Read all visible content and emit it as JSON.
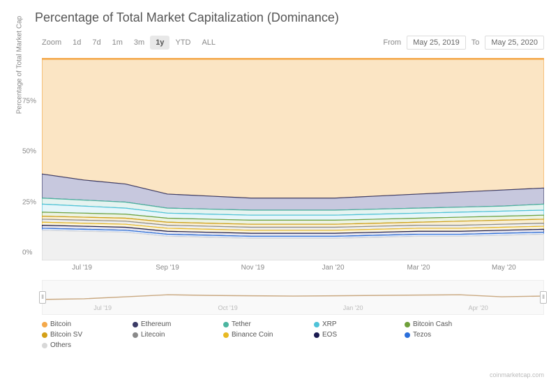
{
  "title": "Percentage of Total Market Capitalization (Dominance)",
  "zoom": {
    "label": "Zoom",
    "buttons": [
      "1d",
      "7d",
      "1m",
      "3m",
      "1y",
      "YTD",
      "ALL"
    ],
    "active": "1y"
  },
  "dates": {
    "from_label": "From",
    "from": "May 25, 2019",
    "to_label": "To",
    "to": "May 25, 2020"
  },
  "chart": {
    "type": "stacked-area",
    "y_label": "Percentage of Total Market Cap",
    "ylim": [
      0,
      100
    ],
    "y_ticks": [
      0,
      25,
      50,
      75
    ],
    "x_ticks": [
      "Jul '19",
      "Sep '19",
      "Nov '19",
      "Jan '20",
      "Mar '20",
      "May '20"
    ],
    "x_positions": [
      8,
      25,
      42,
      58,
      75,
      92
    ],
    "grid_color": "#e8e8e8",
    "top_border_color": "#f4a94b",
    "background_color": "#ffffff",
    "series": [
      {
        "name": "Others",
        "color": "#d8d8d8",
        "fill": "#f0f0f0",
        "cum": [
          15,
          14.5,
          14,
          12,
          11.5,
          11,
          11,
          11,
          11.5,
          12,
          12,
          12.5,
          13
        ]
      },
      {
        "name": "Tezos",
        "color": "#2a6fdb",
        "fill": "#e8effc",
        "cum": [
          16,
          15.5,
          15,
          13,
          12.5,
          12,
          12,
          12,
          12.5,
          13,
          13,
          13.5,
          14
        ]
      },
      {
        "name": "EOS",
        "color": "#1a1a50",
        "fill": "#e6e6f0",
        "cum": [
          17.5,
          17,
          16.5,
          14.5,
          14,
          13.5,
          13.5,
          13.5,
          14,
          14.5,
          14.5,
          15,
          15.5
        ]
      },
      {
        "name": "Binance Coin",
        "color": "#e8b923",
        "fill": "#fbf4dc",
        "cum": [
          19,
          18.5,
          18,
          16,
          15.5,
          15,
          15,
          15,
          15.5,
          16,
          16,
          16.5,
          17
        ]
      },
      {
        "name": "Litecoin",
        "color": "#8a8a8a",
        "fill": "#efefef",
        "cum": [
          20.5,
          20,
          19.5,
          17.5,
          17,
          16.5,
          16.5,
          16.5,
          17,
          17.5,
          17.5,
          18,
          18.5
        ]
      },
      {
        "name": "Bitcoin SV",
        "color": "#d4a017",
        "fill": "#f8efd6",
        "cum": [
          22,
          21.5,
          21,
          19,
          18.5,
          18,
          18,
          18,
          18.5,
          19,
          19.5,
          20,
          20.5
        ]
      },
      {
        "name": "Bitcoin Cash",
        "color": "#6fa03a",
        "fill": "#ecf3e3",
        "cum": [
          24,
          23.5,
          23,
          21,
          20.5,
          20,
          20,
          20,
          20.5,
          21,
          21.5,
          22,
          22.5
        ]
      },
      {
        "name": "XRP",
        "color": "#4fc3d9",
        "fill": "#e6f6fa",
        "cum": [
          28,
          27,
          26,
          23.5,
          23,
          22.5,
          22.5,
          22.5,
          23,
          23.5,
          24,
          24.5,
          25
        ]
      },
      {
        "name": "Tether",
        "color": "#4cb5a0",
        "fill": "#e5f3f0",
        "cum": [
          31,
          30,
          29,
          26,
          25.5,
          25,
          25,
          25,
          25.5,
          26,
          26.5,
          27,
          28
        ]
      },
      {
        "name": "Ethereum",
        "color": "#3b3b66",
        "fill": "#c7c8de",
        "cum": [
          43,
          40,
          38,
          33,
          32,
          31,
          31,
          31,
          32,
          33,
          34,
          35,
          36
        ]
      },
      {
        "name": "Bitcoin",
        "color": "#f4a94b",
        "fill": "#fbe5c4",
        "cum": [
          100,
          100,
          100,
          100,
          100,
          100,
          100,
          100,
          100,
          100,
          100,
          100,
          100
        ]
      }
    ]
  },
  "navigator": {
    "ticks": [
      "Jul '19",
      "Oct '19",
      "Jan '20",
      "Apr '20"
    ],
    "tick_positions": [
      12,
      37,
      62,
      87
    ],
    "line_color": "#c9a880",
    "line": [
      44,
      46,
      52,
      58,
      56,
      55,
      54,
      55,
      56,
      57,
      58,
      52,
      54
    ]
  },
  "legend": [
    {
      "label": "Bitcoin",
      "color": "#f4a94b"
    },
    {
      "label": "Ethereum",
      "color": "#3b3b66"
    },
    {
      "label": "Tether",
      "color": "#4cb5a0"
    },
    {
      "label": "XRP",
      "color": "#4fc3d9"
    },
    {
      "label": "Bitcoin Cash",
      "color": "#6fa03a"
    },
    {
      "label": "Bitcoin SV",
      "color": "#d4a017"
    },
    {
      "label": "Litecoin",
      "color": "#8a8a8a"
    },
    {
      "label": "Binance Coin",
      "color": "#e8b923"
    },
    {
      "label": "EOS",
      "color": "#1a1a50"
    },
    {
      "label": "Tezos",
      "color": "#2a6fdb"
    },
    {
      "label": "Others",
      "color": "#d8d8d8"
    }
  ],
  "attribution": "coinmarketcap.com"
}
